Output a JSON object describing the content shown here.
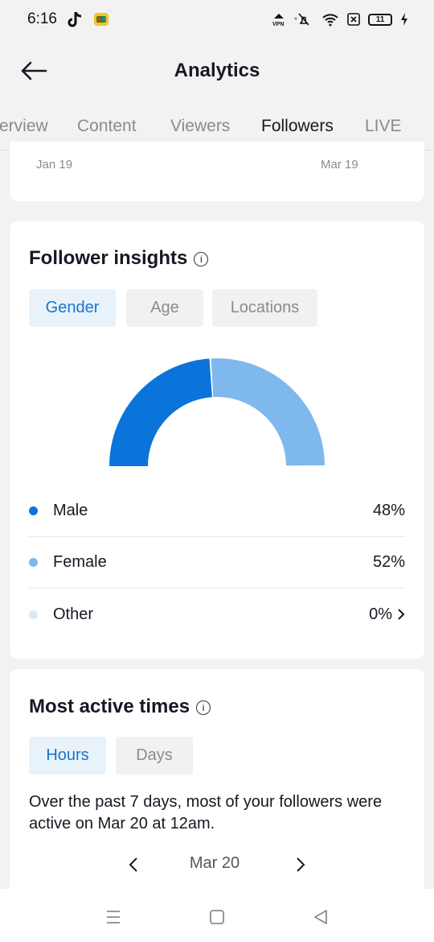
{
  "status_bar": {
    "time": "6:16",
    "battery": "11",
    "icons": [
      "tiktok-icon",
      "game-app-icon",
      "vpn-icon",
      "mute-icon",
      "wifi-icon",
      "close-box-icon",
      "battery-icon",
      "charging-icon"
    ]
  },
  "header": {
    "title": "Analytics"
  },
  "tabs": [
    {
      "label": "Overview",
      "visible_label": "erview"
    },
    {
      "label": "Content"
    },
    {
      "label": "Viewers"
    },
    {
      "label": "Followers",
      "active": true
    },
    {
      "label": "LIVE"
    }
  ],
  "top_card": {
    "date_start": "Jan 19",
    "date_end": "Mar 19"
  },
  "insights": {
    "title": "Follower insights",
    "chips": [
      "Gender",
      "Age",
      "Locations"
    ],
    "selected_chip": "Gender",
    "chart_data": {
      "type": "pie",
      "style": "half-donut",
      "categories": [
        "Male",
        "Female",
        "Other"
      ],
      "values": [
        48,
        52,
        0
      ],
      "unit": "%",
      "colors": [
        "#0a74da",
        "#7fb8ec",
        "#dbe9f6"
      ]
    },
    "legend": [
      {
        "label": "Male",
        "value": "48%",
        "color": "#0a74da"
      },
      {
        "label": "Female",
        "value": "52%",
        "color": "#7fb8ec"
      },
      {
        "label": "Other",
        "value": "0%",
        "color": "#dbe9f6"
      }
    ]
  },
  "active_times": {
    "title": "Most active times",
    "chips": [
      "Hours",
      "Days"
    ],
    "selected_chip": "Hours",
    "summary": "Over the past 7 days, most of your followers were active on Mar 20 at 12am.",
    "current_date": "Mar 20"
  },
  "nav_bar": {
    "buttons": [
      "menu-icon",
      "home-icon",
      "back-triangle-icon"
    ]
  },
  "colors": {
    "accent": "#0a74da",
    "accent_light": "#7fb8ec",
    "chip_selected_bg": "#e8f2fb",
    "chip_selected_text": "#1a73c8"
  }
}
